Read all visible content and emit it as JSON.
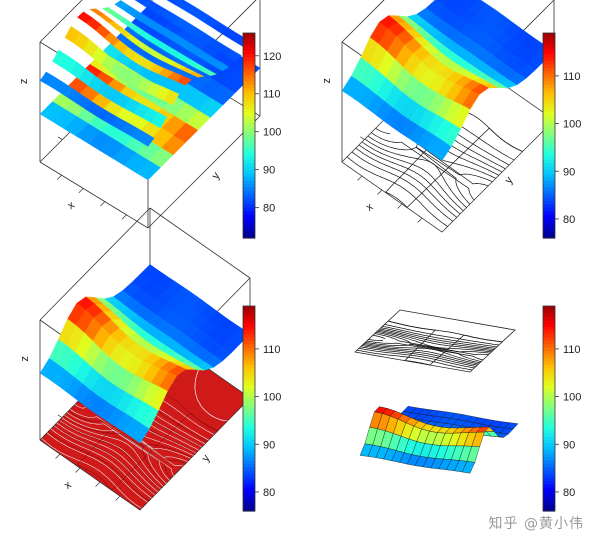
{
  "watermark": "知乎 @黄小伟",
  "palette": [
    "#00008f",
    "#0000ff",
    "#0060ff",
    "#00bfff",
    "#20ffdf",
    "#80ff80",
    "#dfff20",
    "#ffbf00",
    "#ff6000",
    "#ff0000",
    "#8f0000"
  ],
  "chart_data": [
    {
      "type": "surface3d",
      "variant": "ribbon-slices-with-image",
      "axis_labels": {
        "x": "x",
        "y": "y",
        "z": "z"
      },
      "colorbar": {
        "ticks": [
          80,
          90,
          100,
          110,
          120
        ],
        "range": [
          72,
          126
        ]
      }
    },
    {
      "type": "surface3d",
      "variant": "surface-with-contour-base",
      "axis_labels": {
        "x": "x",
        "y": "y",
        "z": "z"
      },
      "colorbar": {
        "ticks": [
          80,
          90,
          100,
          110
        ],
        "range": [
          76,
          119
        ]
      }
    },
    {
      "type": "surface3d",
      "variant": "surface-with-red-contour-base",
      "axis_labels": {
        "x": "x",
        "y": "y",
        "z": "z"
      },
      "colorbar": {
        "ticks": [
          80,
          90,
          100,
          110
        ],
        "range": [
          76,
          119
        ]
      }
    },
    {
      "type": "surface3d",
      "variant": "floating-contour-over-surface",
      "axis_labels": {
        "x": "",
        "y": "",
        "z": ""
      },
      "colorbar": {
        "ticks": [
          80,
          90,
          100,
          110
        ],
        "range": [
          76,
          119
        ]
      }
    }
  ]
}
